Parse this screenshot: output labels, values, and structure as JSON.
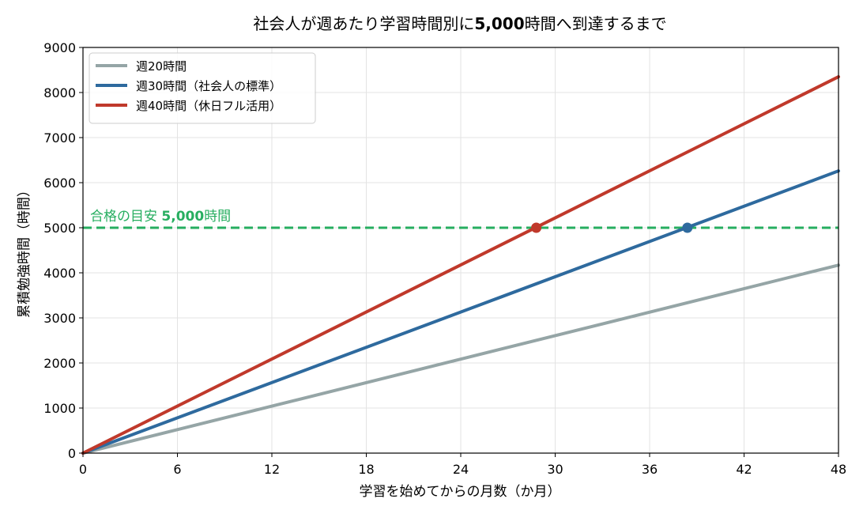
{
  "chart_data": {
    "type": "line",
    "title": {
      "part1": "社会人が週あたり学習時間別に",
      "bold": "5,000",
      "part2": "時間へ到達するまで"
    },
    "xlabel": "学習を始めてからの月数（か月）",
    "ylabel": "累積勉強時間（時間）",
    "xlim": [
      0,
      48
    ],
    "ylim": [
      0,
      9000
    ],
    "x_ticks": [
      0,
      6,
      12,
      18,
      24,
      30,
      36,
      42,
      48
    ],
    "y_ticks": [
      0,
      1000,
      2000,
      3000,
      4000,
      5000,
      6000,
      7000,
      8000,
      9000
    ],
    "grid": true,
    "legend_position": "top-left",
    "series": [
      {
        "name": "週20時間",
        "color": "#95a5a6",
        "x": [
          0,
          48
        ],
        "y": [
          0,
          4170
        ],
        "marker": null
      },
      {
        "name": "週30時間（社会人の標準）",
        "color": "#2e6a9e",
        "x": [
          0,
          48
        ],
        "y": [
          0,
          6260
        ],
        "marker": {
          "x": 38.4,
          "y": 5000
        }
      },
      {
        "name": "週40時間（休日フル活用）",
        "color": "#c0392b",
        "x": [
          0,
          48
        ],
        "y": [
          0,
          8350
        ],
        "marker": {
          "x": 28.8,
          "y": 5000
        }
      }
    ],
    "reference_line": {
      "y": 5000,
      "color": "#27ae60",
      "label_prefix": "合格の目安 ",
      "label_bold": "5,000",
      "label_suffix": "時間"
    }
  }
}
